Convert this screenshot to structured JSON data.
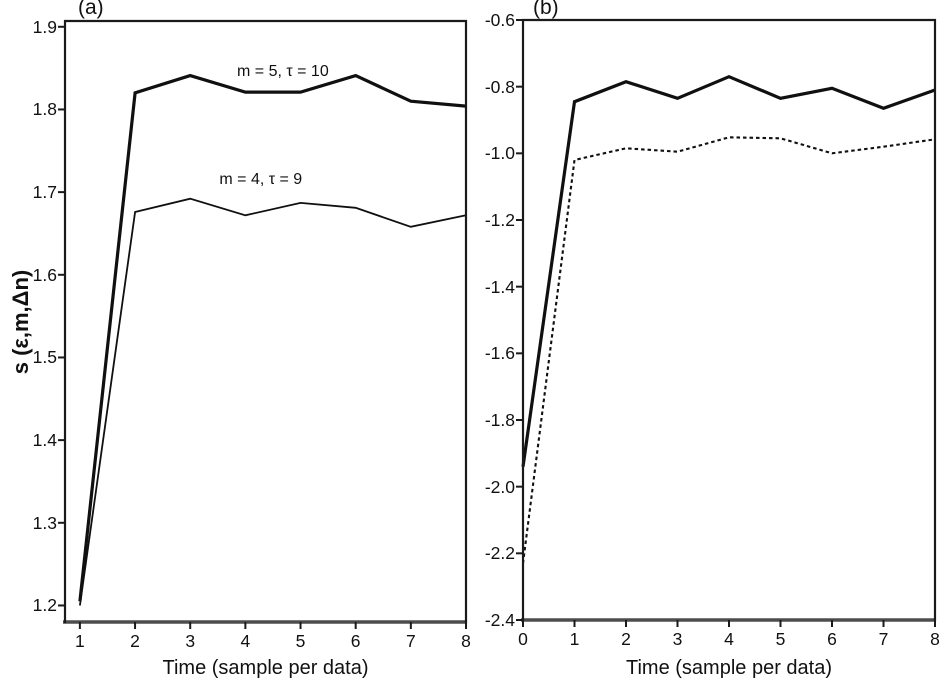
{
  "figure": {
    "background": "#ffffff",
    "line_color": "#101010",
    "frame_color": "#1a1a1a",
    "bottom_axis_color": "#4d4d4d",
    "panel_labels": [
      "(a)",
      "(b)"
    ]
  },
  "chart_data": [
    {
      "type": "line",
      "panel_label": "(a)",
      "xlabel": "Time (sample per data)",
      "ylabel": "s (ε,m,Δn)",
      "grid": false,
      "legend_position": "inline-annotations",
      "x": [
        1,
        2,
        3,
        4,
        5,
        6,
        7,
        8
      ],
      "xlim": [
        0.73,
        8
      ],
      "ylim": [
        1.18,
        1.907
      ],
      "x_ticks": [
        "1",
        "2",
        "3",
        "4",
        "5",
        "6",
        "7",
        "8"
      ],
      "y_ticks": [
        "1.9",
        "1.8",
        "1.7",
        "1.6",
        "1.5",
        "1.4",
        "1.3",
        "1.2"
      ],
      "series": [
        {
          "name": "m = 5, τ = 10",
          "style": "solid-thick",
          "values": [
            1.205,
            1.82,
            1.841,
            1.821,
            1.821,
            1.841,
            1.81,
            1.804
          ]
        },
        {
          "name": "m = 4, τ = 9",
          "style": "solid-thin",
          "values": [
            1.2,
            1.676,
            1.692,
            1.672,
            1.687,
            1.681,
            1.658,
            1.672
          ]
        }
      ],
      "annotations": [
        {
          "text": "m = 5, τ = 10",
          "x": 4.68,
          "y": 1.845
        },
        {
          "text": "m = 4, τ = 9",
          "x": 4.28,
          "y": 1.715
        }
      ]
    },
    {
      "type": "line",
      "panel_label": "(b)",
      "xlabel": "Time (sample per data)",
      "ylabel": "",
      "grid": false,
      "legend_position": "none",
      "x": [
        0,
        1,
        2,
        3,
        4,
        5,
        6,
        7,
        8
      ],
      "xlim": [
        0,
        8
      ],
      "ylim": [
        -2.4,
        -0.6
      ],
      "x_ticks": [
        "0",
        "1",
        "2",
        "3",
        "4",
        "5",
        "6",
        "7",
        "8"
      ],
      "y_ticks": [
        "-0.6",
        "-0.8",
        "-1.0",
        "-1.2",
        "-1.4",
        "-1.6",
        "-1.8",
        "-2.0",
        "-2.2",
        "-2.4"
      ],
      "series": [
        {
          "name": "solid",
          "style": "solid-thick",
          "values": [
            -1.94,
            -0.845,
            -0.785,
            -0.835,
            -0.77,
            -0.835,
            -0.805,
            -0.865,
            -0.81
          ]
        },
        {
          "name": "dashed",
          "style": "dashed",
          "values": [
            -2.23,
            -1.02,
            -0.985,
            -0.995,
            -0.952,
            -0.955,
            -1.0,
            -0.98,
            -0.958
          ]
        }
      ],
      "annotations": []
    }
  ]
}
